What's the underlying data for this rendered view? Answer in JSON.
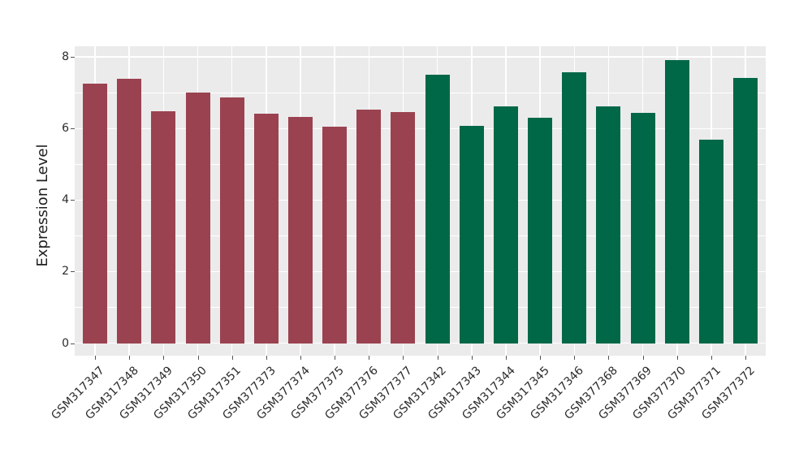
{
  "chart_data": {
    "type": "bar",
    "title": "",
    "xlabel": "",
    "ylabel": "Expression Level",
    "ylim": [
      0,
      8.3
    ],
    "yticks_major": [
      0,
      2,
      4,
      6,
      8
    ],
    "yticks_minor": [
      1,
      3,
      5,
      7
    ],
    "grid": true,
    "legend_position": "none",
    "categories": [
      "GSM317347",
      "GSM317348",
      "GSM317349",
      "GSM317350",
      "GSM317351",
      "GSM377373",
      "GSM377374",
      "GSM377375",
      "GSM377376",
      "GSM377377",
      "GSM317342",
      "GSM317343",
      "GSM317344",
      "GSM317345",
      "GSM317346",
      "GSM377368",
      "GSM377369",
      "GSM377370",
      "GSM377371",
      "GSM377372"
    ],
    "values": [
      7.26,
      7.39,
      6.49,
      7.01,
      6.86,
      6.42,
      6.33,
      6.05,
      6.53,
      6.46,
      7.51,
      6.07,
      6.63,
      6.3,
      7.58,
      6.61,
      6.44,
      7.91,
      5.68,
      7.41
    ],
    "group_of_bar": [
      "group1",
      "group1",
      "group1",
      "group1",
      "group1",
      "group1",
      "group1",
      "group1",
      "group1",
      "group1",
      "group2",
      "group2",
      "group2",
      "group2",
      "group2",
      "group2",
      "group2",
      "group2",
      "group2",
      "group2"
    ],
    "group_colors": {
      "group1": "#9A4250",
      "group2": "#006847"
    },
    "style": {
      "figure_bg": "#FFFFFF",
      "panel_bg": "#EBEBEB",
      "grid_color": "#FFFFFF",
      "tick_mark_color": "#555555",
      "tick_label_color": "#2B2B2B",
      "axis_title_color": "#1F1F1F"
    }
  }
}
